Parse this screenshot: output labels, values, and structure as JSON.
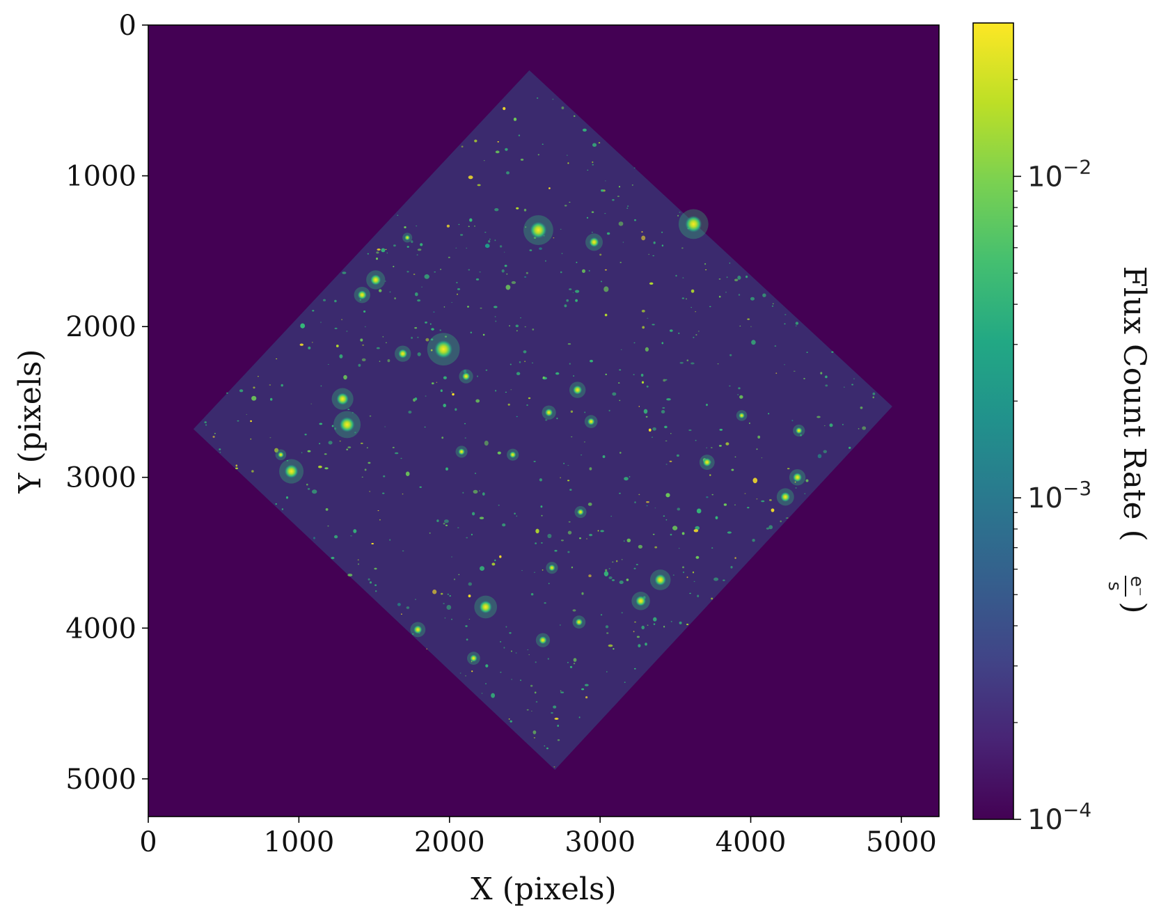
{
  "chart_data": {
    "type": "heatmap",
    "xlabel": "X (pixels)",
    "ylabel": "Y (pixels)",
    "xlim": [
      0,
      5250
    ],
    "ylim": [
      5250,
      0
    ],
    "x_ticks": [
      "0",
      "1000",
      "2000",
      "3000",
      "4000",
      "5000"
    ],
    "y_ticks": [
      "0",
      "1000",
      "2000",
      "3000",
      "4000",
      "5000"
    ],
    "x_tick_values": [
      0,
      1000,
      2000,
      3000,
      4000,
      5000
    ],
    "y_tick_values": [
      0,
      1000,
      2000,
      3000,
      4000,
      5000
    ],
    "image_footprint_corners": [
      {
        "x": 2530,
        "y": 300
      },
      {
        "x": 4940,
        "y": 2530
      },
      {
        "x": 2700,
        "y": 4940
      },
      {
        "x": 300,
        "y": 2680
      }
    ],
    "colorbar": {
      "label_main": "Flux Count Rate (",
      "label_num": "e⁻",
      "label_den": "s",
      "label_close": ")",
      "scale": "log",
      "colormap": "viridis",
      "range": [
        0.0001,
        0.03
      ],
      "tick_values": [
        0.0001,
        0.001,
        0.01
      ],
      "tick_base": "10",
      "tick_exponents": [
        "−4",
        "−3",
        "−2"
      ]
    },
    "colors": {
      "background_value_color": "#440154",
      "field_color": "#3b2a6e",
      "source_colors": [
        "#35b779",
        "#6ece58",
        "#b5de2b",
        "#fde725",
        "#1f9e89"
      ]
    },
    "bright_sources": [
      {
        "x": 2590,
        "y": 1360,
        "size": 55
      },
      {
        "x": 1960,
        "y": 2150,
        "size": 60
      },
      {
        "x": 1320,
        "y": 2650,
        "size": 50
      },
      {
        "x": 1290,
        "y": 2480,
        "size": 40
      },
      {
        "x": 950,
        "y": 2960,
        "size": 45
      },
      {
        "x": 1510,
        "y": 1690,
        "size": 35
      },
      {
        "x": 1420,
        "y": 1790,
        "size": 30
      },
      {
        "x": 2960,
        "y": 1440,
        "size": 32
      },
      {
        "x": 3620,
        "y": 1320,
        "size": 55
      },
      {
        "x": 2240,
        "y": 3860,
        "size": 42
      },
      {
        "x": 3400,
        "y": 3680,
        "size": 38
      },
      {
        "x": 3270,
        "y": 3820,
        "size": 34
      },
      {
        "x": 4230,
        "y": 3130,
        "size": 32
      },
      {
        "x": 4310,
        "y": 3000,
        "size": 30
      },
      {
        "x": 3710,
        "y": 2900,
        "size": 28
      },
      {
        "x": 2850,
        "y": 2420,
        "size": 30
      },
      {
        "x": 1690,
        "y": 2180,
        "size": 30
      },
      {
        "x": 2110,
        "y": 2330,
        "size": 26
      },
      {
        "x": 2660,
        "y": 2570,
        "size": 26
      },
      {
        "x": 2940,
        "y": 2630,
        "size": 24
      },
      {
        "x": 1790,
        "y": 4010,
        "size": 28
      },
      {
        "x": 2620,
        "y": 4080,
        "size": 26
      },
      {
        "x": 2160,
        "y": 4200,
        "size": 24
      },
      {
        "x": 2860,
        "y": 3960,
        "size": 24
      },
      {
        "x": 4320,
        "y": 2690,
        "size": 22
      },
      {
        "x": 2080,
        "y": 2830,
        "size": 22
      },
      {
        "x": 2420,
        "y": 2850,
        "size": 22
      },
      {
        "x": 2870,
        "y": 3230,
        "size": 22
      },
      {
        "x": 3940,
        "y": 2590,
        "size": 20
      },
      {
        "x": 880,
        "y": 2850,
        "size": 20
      },
      {
        "x": 1720,
        "y": 1410,
        "size": 18
      },
      {
        "x": 2680,
        "y": 3600,
        "size": 22
      }
    ]
  }
}
